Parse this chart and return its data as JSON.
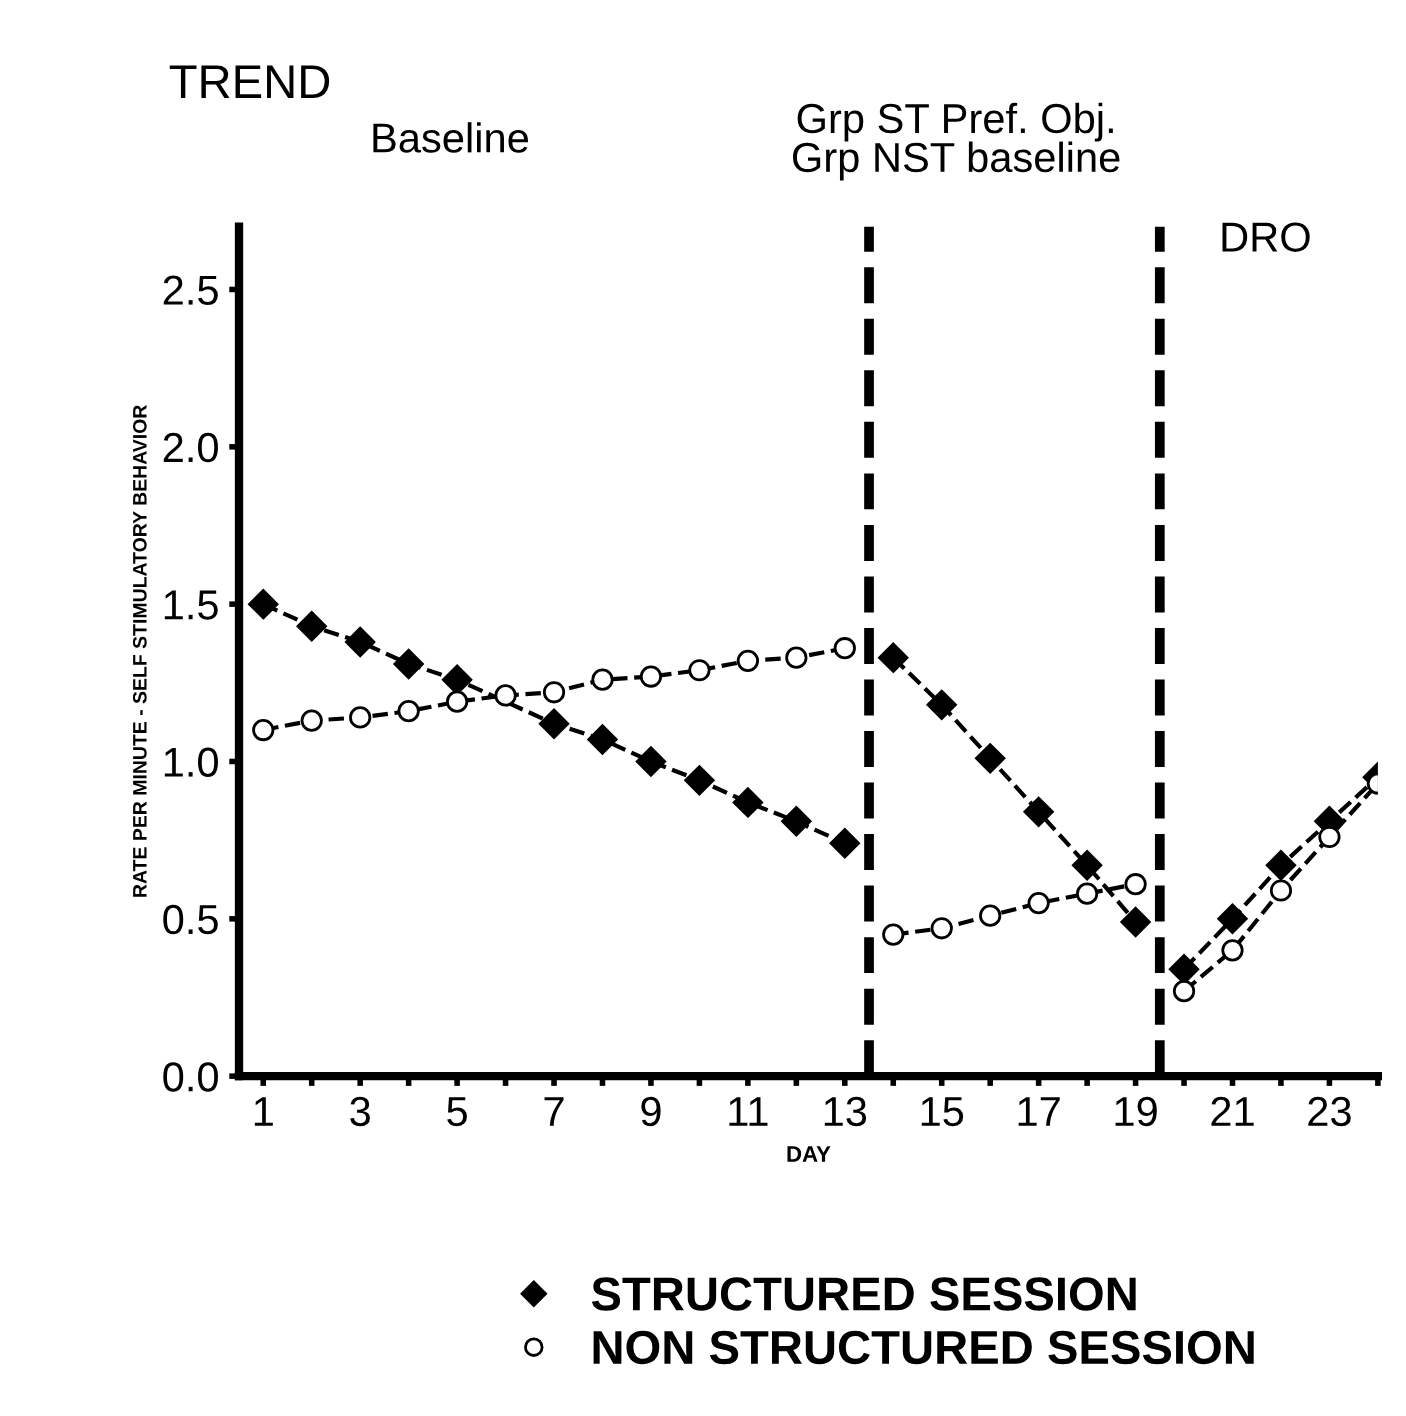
{
  "chart_data": {
    "type": "line",
    "title": "TREND",
    "xlabel": "DAY",
    "ylabel": "RATE PER MINUTE - SELF STIMULATORY BEHAVIOR",
    "annotations": [
      "Baseline",
      "Grp ST Pref. Obj.\nGrp NST baseline",
      "DRO"
    ],
    "x": [
      1,
      2,
      3,
      4,
      5,
      6,
      7,
      8,
      9,
      10,
      11,
      12,
      13,
      14,
      15,
      16,
      17,
      18,
      19,
      20,
      21,
      22,
      23,
      24
    ],
    "series": [
      {
        "name": "STRUCTURED SESSION",
        "color": "#000000",
        "marker": "diamond",
        "values": [
          1.5,
          1.43,
          1.38,
          1.31,
          1.26,
          null,
          1.12,
          1.07,
          1.0,
          0.94,
          0.87,
          0.81,
          0.74,
          1.33,
          1.18,
          1.01,
          0.84,
          0.67,
          0.49,
          0.34,
          0.5,
          0.67,
          0.81,
          0.95
        ]
      },
      {
        "name": "NON STRUCTURED SESSION",
        "color": "#000000",
        "marker": "circle",
        "values": [
          1.1,
          1.13,
          1.14,
          1.16,
          1.19,
          1.21,
          1.22,
          1.26,
          1.27,
          1.29,
          1.32,
          1.33,
          1.36,
          0.45,
          0.47,
          0.51,
          0.55,
          0.58,
          0.61,
          0.27,
          0.4,
          0.59,
          0.76,
          0.93
        ]
      }
    ],
    "ref_lines": [
      {
        "axis": "x",
        "value": 13.5,
        "label": null,
        "color": "#000000",
        "line_style": "dashed"
      },
      {
        "axis": "x",
        "value": 19.5,
        "label": null,
        "color": "#000000",
        "line_style": "dashed"
      }
    ],
    "xlim": [
      0.5,
      24
    ],
    "ylim": [
      0,
      2.7
    ],
    "xticks": [
      1,
      {
        "value": 2,
        "label": null
      },
      3,
      {
        "value": 4,
        "label": null
      },
      5,
      {
        "value": 6,
        "label": null
      },
      7,
      {
        "value": 8,
        "label": null
      },
      9,
      {
        "value": 10,
        "label": null
      },
      11,
      {
        "value": 12,
        "label": null
      },
      13,
      {
        "value": 14,
        "label": null
      },
      15,
      {
        "value": 16,
        "label": null
      },
      17,
      {
        "value": 18,
        "label": null
      },
      19,
      {
        "value": 20,
        "label": null
      },
      21,
      {
        "value": 22,
        "label": null
      },
      23,
      {
        "value": 24,
        "label": null
      }
    ],
    "yticks": [
      {
        "value": 0,
        "label": "0.0"
      },
      {
        "value": 0.5,
        "label": "0.5"
      },
      {
        "value": 1,
        "label": "1.0"
      },
      {
        "value": 1.5,
        "label": "1.5"
      },
      {
        "value": 2,
        "label": "2.0"
      },
      {
        "value": 2.5,
        "label": "2.5"
      }
    ],
    "line_style": "dashed",
    "grid": false,
    "legend": "bottom"
  }
}
